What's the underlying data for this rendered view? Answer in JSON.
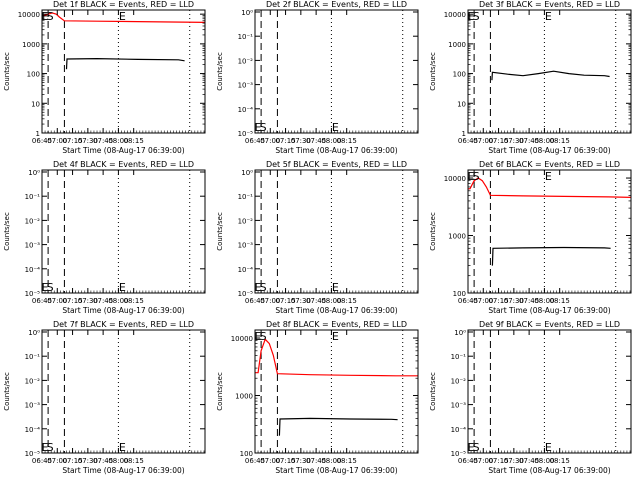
{
  "page": {
    "background": "#ffffff",
    "axis_color": "#000000",
    "event_color": "#000000",
    "lld_color": "#ff0000"
  },
  "chart_data": [
    {
      "type": "line",
      "title": "Det 1f BLACK = Events, RED = LLD",
      "ylabel": "Counts/sec",
      "xlabel": "Start Time (08-Aug-17 06:39:00)",
      "y_scale": "log",
      "x_range_min": [
        6,
        166
      ],
      "y_tick_labels": [
        "1",
        "10",
        "100",
        "1000",
        "10000"
      ],
      "x_tick_labels": [
        "06:45",
        "07:00",
        "07:15",
        "07:30",
        "07:45",
        "08:00",
        "08:15"
      ],
      "dashed_lines_min": [
        12,
        28
      ],
      "dotted_lines_min": [
        81,
        151
      ],
      "annotations": [
        {
          "text": "E",
          "x_min": 4,
          "pos": "top"
        },
        {
          "text": "S",
          "x_min": 9,
          "pos": "top"
        },
        {
          "text": "E",
          "x_min": 80,
          "pos": "top"
        }
      ],
      "series": [
        {
          "name": "LLD",
          "color": "#ff0000",
          "points": [
            [
              6,
              9000
            ],
            [
              8,
              9000
            ],
            [
              12,
              10000
            ],
            [
              16,
              11000
            ],
            [
              20,
              10000
            ],
            [
              23,
              8000
            ],
            [
              28,
              6000
            ],
            [
              60,
              5800
            ],
            [
              100,
              5600
            ],
            [
              144,
              5400
            ],
            [
              166,
              5300
            ]
          ]
        },
        {
          "name": "Events",
          "color": "#000000",
          "points": [
            [
              30,
              140
            ],
            [
              30.5,
              310
            ],
            [
              60,
              320
            ],
            [
              100,
              300
            ],
            [
              140,
              290
            ],
            [
              146,
              270
            ]
          ]
        }
      ]
    },
    {
      "type": "line",
      "title": "Det 2f BLACK = Events, RED = LLD",
      "ylabel": "Counts/sec",
      "xlabel": "Start Time (08-Aug-17 06:39:00)",
      "y_scale": "log",
      "x_range_min": [
        6,
        166
      ],
      "y_tick_labels": [
        "10⁰",
        "10⁻¹",
        "10⁻²",
        "10⁻³",
        "10⁻⁴",
        "10⁻⁵"
      ],
      "x_tick_labels": [
        "06:45",
        "07:00",
        "07:15",
        "07:30",
        "07:45",
        "08:00",
        "08:15"
      ],
      "dashed_lines_min": [
        12,
        28
      ],
      "dotted_lines_min": [
        81,
        151
      ],
      "annotations": [
        {
          "text": "E",
          "x_min": 4,
          "pos": "bottom"
        },
        {
          "text": "S",
          "x_min": 9,
          "pos": "bottom"
        },
        {
          "text": "E",
          "x_min": 80,
          "pos": "bottom"
        }
      ],
      "series": []
    },
    {
      "type": "line",
      "title": "Det 3f BLACK = Events, RED = LLD",
      "ylabel": "Counts/sec",
      "xlabel": "Start Time (08-Aug-17 06:39:00)",
      "y_scale": "log",
      "x_range_min": [
        6,
        166
      ],
      "y_tick_labels": [
        "1",
        "10",
        "100",
        "1000",
        "10000"
      ],
      "x_tick_labels": [
        "06:45",
        "07:00",
        "07:15",
        "07:30",
        "07:45",
        "08:00",
        "08:15"
      ],
      "dashed_lines_min": [
        12,
        28
      ],
      "dotted_lines_min": [
        81,
        151
      ],
      "annotations": [
        {
          "text": "E",
          "x_min": 4,
          "pos": "top"
        },
        {
          "text": "S",
          "x_min": 9,
          "pos": "top"
        },
        {
          "text": "E",
          "x_min": 80,
          "pos": "top"
        }
      ],
      "series": [
        {
          "name": "Events",
          "color": "#000000",
          "points": [
            [
              29.5,
              60
            ],
            [
              30,
              110
            ],
            [
              45,
              95
            ],
            [
              60,
              85
            ],
            [
              75,
              100
            ],
            [
              90,
              120
            ],
            [
              105,
              100
            ],
            [
              120,
              88
            ],
            [
              140,
              85
            ],
            [
              145,
              80
            ]
          ]
        }
      ]
    },
    {
      "type": "line",
      "title": "Det 4f BLACK = Events, RED = LLD",
      "ylabel": "Counts/sec",
      "xlabel": "Start Time (08-Aug-17 06:39:00)",
      "y_scale": "log",
      "x_range_min": [
        6,
        166
      ],
      "y_tick_labels": [
        "10⁰",
        "10⁻¹",
        "10⁻²",
        "10⁻³",
        "10⁻⁴",
        "10⁻⁵"
      ],
      "x_tick_labels": [
        "06:45",
        "07:00",
        "07:15",
        "07:30",
        "07:45",
        "08:00",
        "08:15"
      ],
      "dashed_lines_min": [
        12,
        28
      ],
      "dotted_lines_min": [
        81,
        151
      ],
      "annotations": [
        {
          "text": "E",
          "x_min": 4,
          "pos": "bottom"
        },
        {
          "text": "S",
          "x_min": 9,
          "pos": "bottom"
        },
        {
          "text": "E",
          "x_min": 80,
          "pos": "bottom"
        }
      ],
      "series": []
    },
    {
      "type": "line",
      "title": "Det 5f BLACK = Events, RED = LLD",
      "ylabel": "Counts/sec",
      "xlabel": "Start Time (08-Aug-17 06:39:00)",
      "y_scale": "log",
      "x_range_min": [
        6,
        166
      ],
      "y_tick_labels": [
        "10⁰",
        "10⁻¹",
        "10⁻²",
        "10⁻³",
        "10⁻⁴",
        "10⁻⁵"
      ],
      "x_tick_labels": [
        "06:45",
        "07:00",
        "07:15",
        "07:30",
        "07:45",
        "08:00",
        "08:15"
      ],
      "dashed_lines_min": [
        12,
        28
      ],
      "dotted_lines_min": [
        81,
        151
      ],
      "annotations": [
        {
          "text": "E",
          "x_min": 4,
          "pos": "bottom"
        },
        {
          "text": "S",
          "x_min": 9,
          "pos": "bottom"
        },
        {
          "text": "E",
          "x_min": 80,
          "pos": "bottom"
        }
      ],
      "series": []
    },
    {
      "type": "line",
      "title": "Det 6f BLACK = Events, RED = LLD",
      "ylabel": "Counts/sec",
      "xlabel": "Start Time (08-Aug-17 06:39:00)",
      "y_scale": "log",
      "x_range_min": [
        6,
        166
      ],
      "y_tick_labels": [
        "100",
        "1000",
        "10000"
      ],
      "x_tick_labels": [
        "06:45",
        "07:00",
        "07:15",
        "07:30",
        "07:45",
        "08:00",
        "08:15"
      ],
      "dashed_lines_min": [
        12,
        28
      ],
      "dotted_lines_min": [
        81,
        151
      ],
      "annotations": [
        {
          "text": "E",
          "x_min": 4,
          "pos": "top"
        },
        {
          "text": "S",
          "x_min": 9,
          "pos": "top"
        },
        {
          "text": "E",
          "x_min": 80,
          "pos": "top"
        }
      ],
      "series": [
        {
          "name": "LLD",
          "color": "#ff0000",
          "points": [
            [
              6,
              6500
            ],
            [
              8,
              6500
            ],
            [
              12,
              9000
            ],
            [
              16,
              10000
            ],
            [
              20,
              9000
            ],
            [
              24,
              7000
            ],
            [
              28,
              5000
            ],
            [
              60,
              4900
            ],
            [
              100,
              4800
            ],
            [
              144,
              4700
            ],
            [
              166,
              4600
            ]
          ]
        },
        {
          "name": "Events",
          "color": "#000000",
          "points": [
            [
              30,
              300
            ],
            [
              30.5,
              600
            ],
            [
              60,
              610
            ],
            [
              100,
              620
            ],
            [
              140,
              610
            ],
            [
              146,
              600
            ]
          ]
        }
      ]
    },
    {
      "type": "line",
      "title": "Det 7f BLACK = Events, RED = LLD",
      "ylabel": "Counts/sec",
      "xlabel": "Start Time (08-Aug-17 06:39:00)",
      "y_scale": "log",
      "x_range_min": [
        6,
        166
      ],
      "y_tick_labels": [
        "10⁰",
        "10⁻¹",
        "10⁻²",
        "10⁻³",
        "10⁻⁴",
        "10⁻⁵"
      ],
      "x_tick_labels": [
        "06:45",
        "07:00",
        "07:15",
        "07:30",
        "07:45",
        "08:00",
        "08:15"
      ],
      "dashed_lines_min": [
        12,
        28
      ],
      "dotted_lines_min": [
        81,
        151
      ],
      "annotations": [
        {
          "text": "E",
          "x_min": 4,
          "pos": "bottom"
        },
        {
          "text": "S",
          "x_min": 9,
          "pos": "bottom"
        },
        {
          "text": "E",
          "x_min": 80,
          "pos": "bottom"
        }
      ],
      "series": []
    },
    {
      "type": "line",
      "title": "Det 8f BLACK = Events, RED = LLD",
      "ylabel": "Counts/sec",
      "xlabel": "Start Time (08-Aug-17 06:39:00)",
      "y_scale": "log",
      "x_range_min": [
        6,
        166
      ],
      "y_tick_labels": [
        "100",
        "1000",
        "10000"
      ],
      "x_tick_labels": [
        "06:45",
        "07:00",
        "07:15",
        "07:30",
        "07:45",
        "08:00",
        "08:15"
      ],
      "dashed_lines_min": [
        12,
        28
      ],
      "dotted_lines_min": [
        81,
        151
      ],
      "annotations": [
        {
          "text": "E",
          "x_min": 4,
          "pos": "top"
        },
        {
          "text": "S",
          "x_min": 9,
          "pos": "top"
        },
        {
          "text": "E",
          "x_min": 80,
          "pos": "top"
        }
      ],
      "series": [
        {
          "name": "LLD",
          "color": "#ff0000",
          "points": [
            [
              6,
              2500
            ],
            [
              9,
              2500
            ],
            [
              12,
              6000
            ],
            [
              16,
              9500
            ],
            [
              20,
              8000
            ],
            [
              24,
              5000
            ],
            [
              28,
              2400
            ],
            [
              60,
              2300
            ],
            [
              100,
              2250
            ],
            [
              144,
              2200
            ],
            [
              166,
              2200
            ]
          ]
        },
        {
          "name": "Events",
          "color": "#000000",
          "points": [
            [
              30,
              200
            ],
            [
              30.5,
              390
            ],
            [
              60,
              400
            ],
            [
              100,
              390
            ],
            [
              140,
              385
            ],
            [
              146,
              380
            ]
          ]
        }
      ]
    },
    {
      "type": "line",
      "title": "Det 9f BLACK = Events, RED = LLD",
      "ylabel": "Counts/sec",
      "xlabel": "Start Time (08-Aug-17 06:39:00)",
      "y_scale": "log",
      "x_range_min": [
        6,
        166
      ],
      "y_tick_labels": [
        "10⁰",
        "10⁻¹",
        "10⁻²",
        "10⁻³",
        "10⁻⁴",
        "10⁻⁵"
      ],
      "x_tick_labels": [
        "06:45",
        "07:00",
        "07:15",
        "07:30",
        "07:45",
        "08:00",
        "08:15"
      ],
      "dashed_lines_min": [
        12,
        28
      ],
      "dotted_lines_min": [
        81,
        151
      ],
      "annotations": [
        {
          "text": "E",
          "x_min": 4,
          "pos": "bottom"
        },
        {
          "text": "S",
          "x_min": 9,
          "pos": "bottom"
        },
        {
          "text": "E",
          "x_min": 80,
          "pos": "bottom"
        }
      ],
      "series": []
    }
  ]
}
